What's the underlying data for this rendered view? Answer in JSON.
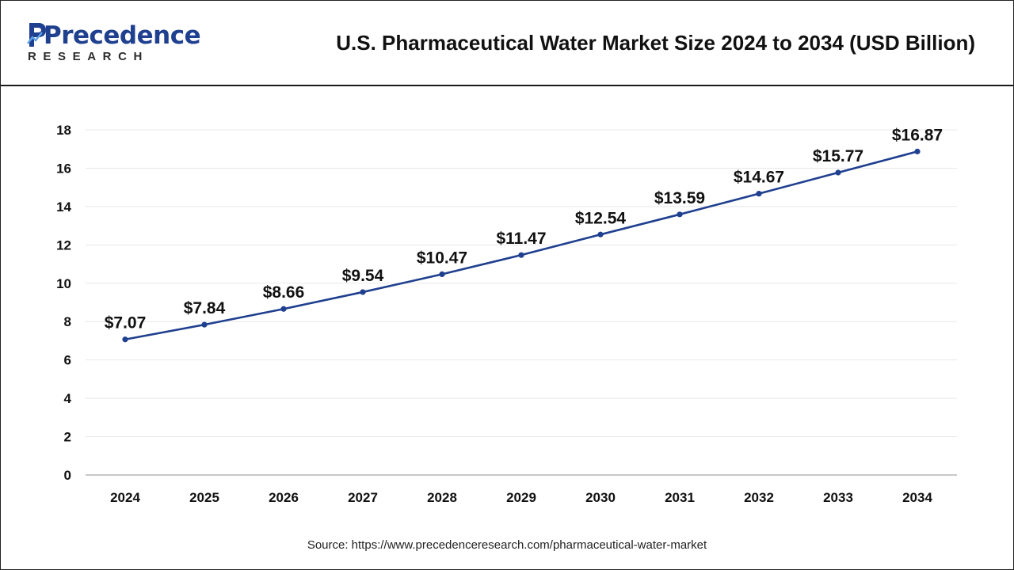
{
  "header": {
    "logo_word": "Precedence",
    "logo_sub": "RESEARCH",
    "title": "U.S. Pharmaceutical Water Market Size 2024 to 2034 (USD Billion)"
  },
  "colors": {
    "line": "#1f3f8f",
    "marker": "#1f3f8f",
    "grid": "#e8e8e8",
    "text": "#111111"
  },
  "chart_data": {
    "type": "line",
    "title": "U.S. Pharmaceutical Water Market Size 2024 to 2034 (USD Billion)",
    "xlabel": "",
    "ylabel": "",
    "categories": [
      "2024",
      "2025",
      "2026",
      "2027",
      "2028",
      "2029",
      "2030",
      "2031",
      "2032",
      "2033",
      "2034"
    ],
    "values": [
      7.07,
      7.84,
      8.66,
      9.54,
      10.47,
      11.47,
      12.54,
      13.59,
      14.67,
      15.77,
      16.87
    ],
    "data_labels": [
      "$7.07",
      "$7.84",
      "$8.66",
      "$9.54",
      "$10.47",
      "$11.47",
      "$12.54",
      "$13.59",
      "$14.67",
      "$15.77",
      "$16.87"
    ],
    "ylim": [
      0,
      18
    ],
    "yticks": [
      0,
      2,
      4,
      6,
      8,
      10,
      12,
      14,
      16,
      18
    ],
    "ytick_labels": [
      "0",
      "2",
      "4",
      "6",
      "8",
      "10",
      "12",
      "14",
      "16",
      "18"
    ],
    "grid": true,
    "legend": "none"
  },
  "source": "Source: https://www.precedenceresearch.com/pharmaceutical-water-market"
}
